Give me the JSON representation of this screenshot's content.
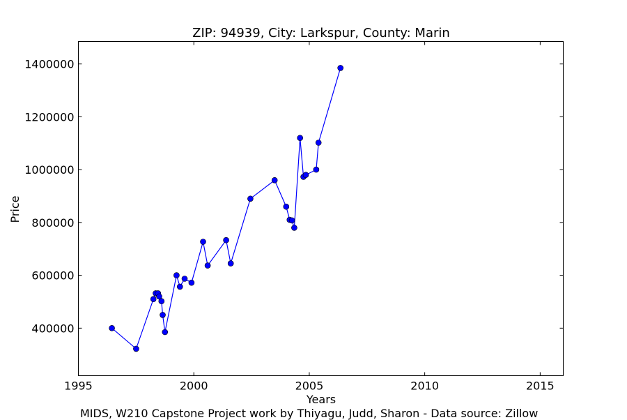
{
  "chart_data": {
    "type": "line",
    "title": "ZIP: 94939, City: Larkspur, County: Marin",
    "xlabel": "Years",
    "ylabel": "Price",
    "xlim": [
      1995,
      2016
    ],
    "ylim": [
      220000,
      1485000
    ],
    "xticks": [
      1995,
      2000,
      2005,
      2010,
      2015
    ],
    "yticks": [
      400000,
      600000,
      800000,
      1000000,
      1200000,
      1400000
    ],
    "grid": false,
    "line_color": "#0000ff",
    "marker_color": "#0000ff",
    "series": [
      {
        "name": "Price",
        "x": [
          1996.45,
          1997.5,
          1998.25,
          1998.35,
          1998.45,
          1998.5,
          1998.6,
          1998.65,
          1998.75,
          1999.25,
          1999.4,
          1999.6,
          1999.9,
          2000.4,
          2000.6,
          2001.4,
          2001.6,
          2002.45,
          2003.5,
          2004.0,
          2004.15,
          2004.25,
          2004.35,
          2004.6,
          2004.75,
          2004.85,
          2005.3,
          2005.4,
          2006.35
        ],
        "y": [
          400000,
          322000,
          510000,
          532000,
          532000,
          520000,
          502000,
          450000,
          385000,
          600000,
          557000,
          587000,
          572000,
          727000,
          637000,
          733000,
          645000,
          890000,
          960000,
          860000,
          810000,
          808000,
          780000,
          1120000,
          973000,
          980000,
          1000000,
          1102000,
          1385000
        ]
      }
    ]
  },
  "footer": {
    "credit": "MIDS, W210 Capstone Project work by Thiyagu, Judd, Sharon  -  Data source: Zillow"
  }
}
